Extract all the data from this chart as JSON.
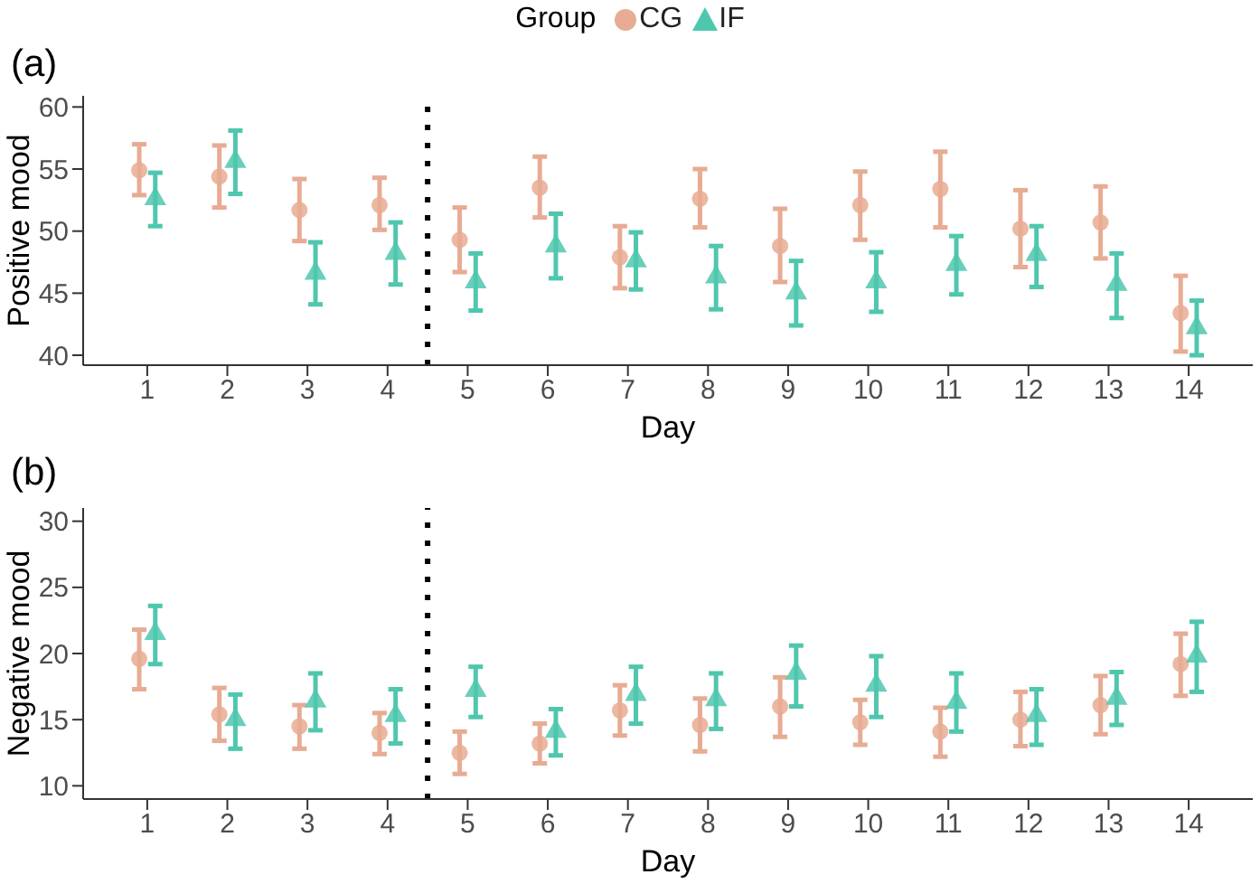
{
  "chart_data": [
    {
      "type": "scatter",
      "title": "(a)",
      "xlabel": "Day",
      "ylabel": "Positive mood",
      "legend_title": "Group",
      "legend": "top",
      "xlim": [
        0.2,
        14.8
      ],
      "xticks": [
        1,
        2,
        3,
        4,
        5,
        6,
        7,
        8,
        9,
        10,
        11,
        12,
        13,
        14
      ],
      "ylim": [
        39.2,
        60.9
      ],
      "yticks": [
        40,
        45,
        50,
        55,
        60
      ],
      "series": [
        {
          "name": "CG",
          "color": "#e8ab93",
          "marker": "circle",
          "x": [
            0.9,
            1.9,
            2.9,
            3.9,
            4.9,
            5.9,
            6.9,
            7.9,
            8.9,
            9.9,
            10.9,
            11.9,
            12.9,
            13.9
          ],
          "values": [
            54.9,
            54.4,
            51.7,
            52.1,
            49.3,
            53.5,
            47.9,
            52.6,
            48.8,
            52.1,
            53.4,
            50.2,
            50.7,
            43.4
          ],
          "errors": [
            [
              52.9,
              57.0
            ],
            [
              51.9,
              56.9
            ],
            [
              49.2,
              54.2
            ],
            [
              50.1,
              54.3
            ],
            [
              46.7,
              51.9
            ],
            [
              51.1,
              56.0
            ],
            [
              45.4,
              50.4
            ],
            [
              50.3,
              55.0
            ],
            [
              45.9,
              51.8
            ],
            [
              49.3,
              54.8
            ],
            [
              50.3,
              56.4
            ],
            [
              47.1,
              53.3
            ],
            [
              47.8,
              53.6
            ],
            [
              40.3,
              46.4
            ]
          ]
        },
        {
          "name": "IF",
          "color": "#4fc7ae",
          "marker": "triangle",
          "x": [
            1.1,
            2.1,
            3.1,
            4.1,
            5.1,
            6.1,
            7.1,
            8.1,
            9.1,
            10.1,
            11.1,
            12.1,
            13.1,
            14.1
          ],
          "values": [
            52.6,
            55.6,
            46.6,
            48.2,
            45.9,
            48.8,
            47.6,
            46.3,
            45.0,
            45.9,
            47.3,
            48.1,
            45.7,
            42.2
          ],
          "errors": [
            [
              50.4,
              54.7
            ],
            [
              53.0,
              58.1
            ],
            [
              44.1,
              49.1
            ],
            [
              45.7,
              50.7
            ],
            [
              43.6,
              48.2
            ],
            [
              46.2,
              51.4
            ],
            [
              45.3,
              49.9
            ],
            [
              43.7,
              48.8
            ],
            [
              42.4,
              47.6
            ],
            [
              43.5,
              48.3
            ],
            [
              44.9,
              49.6
            ],
            [
              45.5,
              50.4
            ],
            [
              43.0,
              48.2
            ],
            [
              40.0,
              44.4
            ]
          ]
        }
      ],
      "ref_lines": [
        {
          "axis": "x",
          "value": 4.5,
          "color": "#000000",
          "line_style": "dotted"
        }
      ]
    },
    {
      "type": "scatter",
      "title": "(b)",
      "xlabel": "Day",
      "ylabel": "Negative mood",
      "xlim": [
        0.2,
        14.8
      ],
      "xticks": [
        1,
        2,
        3,
        4,
        5,
        6,
        7,
        8,
        9,
        10,
        11,
        12,
        13,
        14
      ],
      "ylim": [
        9.0,
        31.0
      ],
      "yticks": [
        10,
        15,
        20,
        25,
        30
      ],
      "series": [
        {
          "color": "#e8ab93",
          "marker": "circle",
          "x": [
            0.9,
            1.9,
            2.9,
            3.9,
            4.9,
            5.9,
            6.9,
            7.9,
            8.9,
            9.9,
            10.9,
            11.9,
            12.9,
            13.9
          ],
          "values": [
            19.6,
            15.4,
            14.5,
            14.0,
            12.5,
            13.2,
            15.7,
            14.6,
            16.0,
            14.8,
            14.1,
            15.0,
            16.1,
            19.2
          ],
          "errors": [
            [
              17.3,
              21.8
            ],
            [
              13.4,
              17.4
            ],
            [
              12.8,
              16.1
            ],
            [
              12.4,
              15.5
            ],
            [
              10.9,
              14.1
            ],
            [
              11.7,
              14.7
            ],
            [
              13.8,
              17.6
            ],
            [
              12.6,
              16.6
            ],
            [
              13.7,
              18.2
            ],
            [
              13.1,
              16.5
            ],
            [
              12.2,
              15.9
            ],
            [
              13.0,
              17.1
            ],
            [
              13.9,
              18.3
            ],
            [
              16.8,
              21.5
            ]
          ]
        },
        {
          "color": "#4fc7ae",
          "marker": "triangle",
          "x": [
            1.1,
            2.1,
            3.1,
            4.1,
            5.1,
            6.1,
            7.1,
            8.1,
            9.1,
            10.1,
            11.1,
            12.1,
            13.1,
            14.1
          ],
          "values": [
            21.5,
            15.0,
            16.4,
            15.3,
            17.2,
            14.1,
            16.9,
            16.5,
            18.5,
            17.6,
            16.3,
            15.3,
            16.6,
            19.8
          ],
          "errors": [
            [
              19.2,
              23.6
            ],
            [
              12.8,
              16.9
            ],
            [
              14.2,
              18.5
            ],
            [
              13.2,
              17.3
            ],
            [
              15.2,
              19.0
            ],
            [
              12.3,
              15.8
            ],
            [
              14.7,
              19.0
            ],
            [
              14.3,
              18.5
            ],
            [
              16.0,
              20.6
            ],
            [
              15.2,
              19.8
            ],
            [
              14.1,
              18.5
            ],
            [
              13.1,
              17.3
            ],
            [
              14.6,
              18.6
            ],
            [
              17.1,
              22.4
            ]
          ]
        }
      ],
      "ref_lines": [
        {
          "axis": "x",
          "value": 4.5,
          "color": "#000000",
          "line_style": "dotted"
        }
      ]
    }
  ]
}
